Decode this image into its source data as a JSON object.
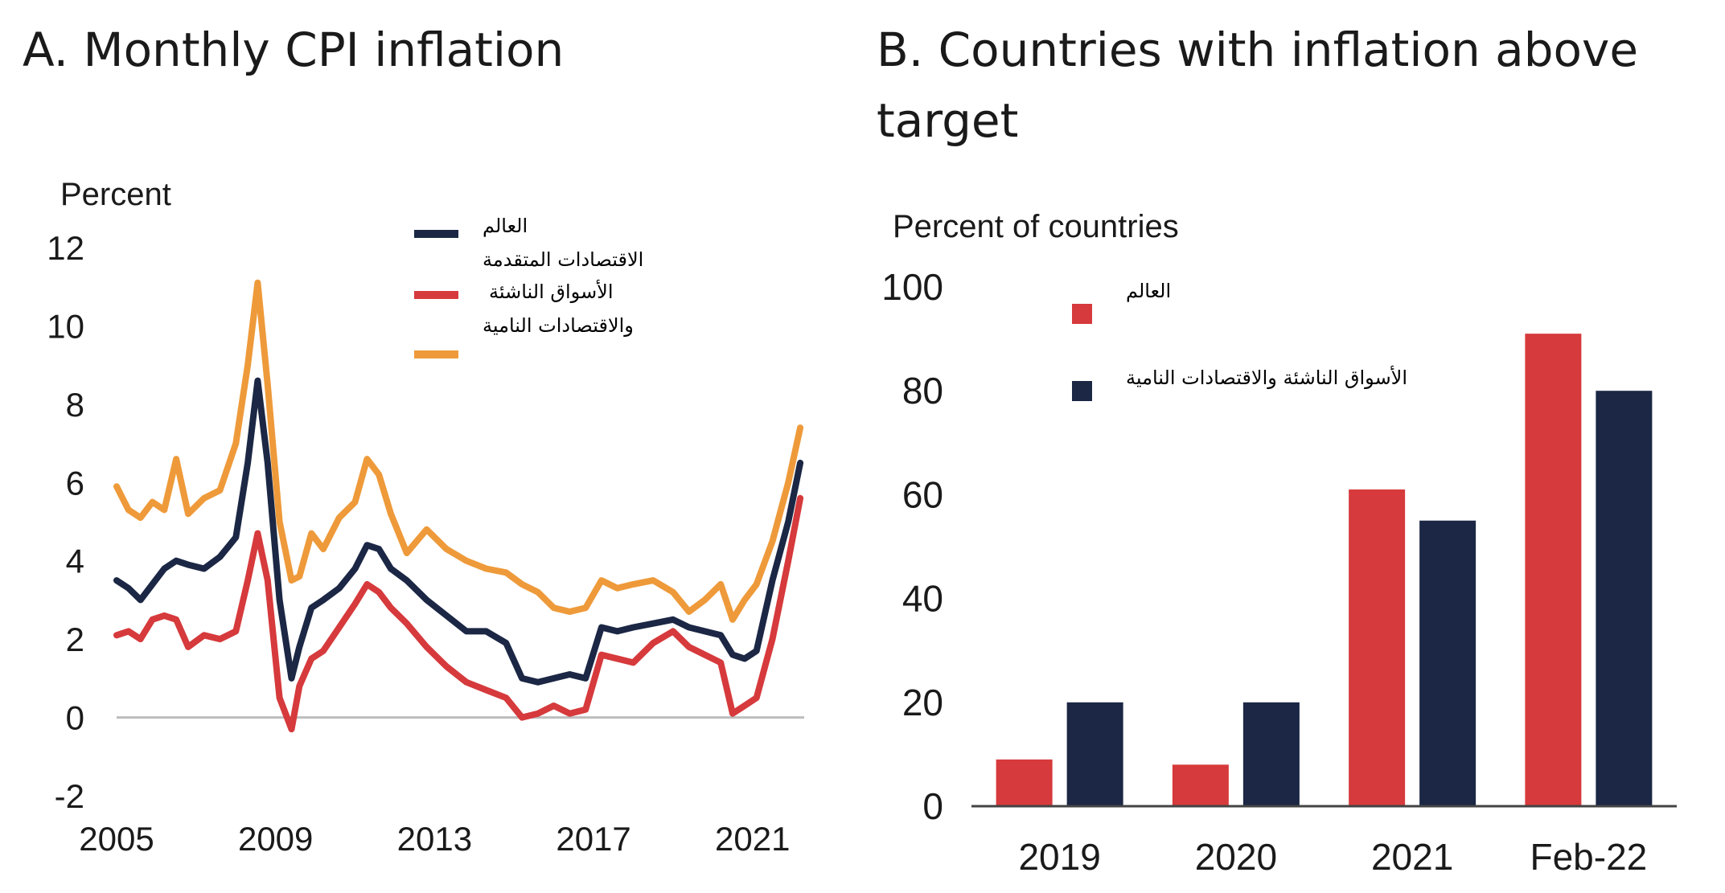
{
  "colors": {
    "world": "#1b2744",
    "advanced": "#d63a3c",
    "emde": "#ee9a3a",
    "zero_line": "#bdbdbd",
    "axis": "#444444",
    "text": "#1a1a1a"
  },
  "chart_data": [
    {
      "type": "line",
      "title": "A. Monthly CPI inflation",
      "ylabel": "Percent",
      "xlabel": "",
      "ylim": [
        -2,
        12
      ],
      "xlim": [
        2005.0,
        2022.3
      ],
      "yticks": [
        -2,
        0,
        2,
        4,
        6,
        8,
        10,
        12
      ],
      "xticks": [
        2005,
        2009,
        2013,
        2017,
        2021
      ],
      "legend_position": "top-right",
      "legend_labels": [
        "العالم",
        "الاقتصادات المتقدمة",
        "الأسواق الناشئة",
        "والاقتصادات النامية"
      ],
      "series": [
        {
          "color": "#1b2744",
          "x": [
            2005.0,
            2005.3,
            2005.6,
            2005.9,
            2006.2,
            2006.5,
            2006.8,
            2007.2,
            2007.6,
            2008.0,
            2008.3,
            2008.55,
            2008.8,
            2009.1,
            2009.4,
            2009.6,
            2009.9,
            2010.2,
            2010.6,
            2011.0,
            2011.3,
            2011.6,
            2011.9,
            2012.3,
            2012.8,
            2013.3,
            2013.8,
            2014.3,
            2014.8,
            2015.2,
            2015.6,
            2016.0,
            2016.4,
            2016.8,
            2017.2,
            2017.6,
            2018.0,
            2018.5,
            2019.0,
            2019.4,
            2019.8,
            2020.2,
            2020.5,
            2020.8,
            2021.1,
            2021.5,
            2021.9,
            2022.2
          ],
          "values": [
            3.5,
            3.3,
            3.0,
            3.4,
            3.8,
            4.0,
            3.9,
            3.8,
            4.1,
            4.6,
            6.5,
            8.6,
            6.5,
            3.0,
            1.0,
            1.8,
            2.8,
            3.0,
            3.3,
            3.8,
            4.4,
            4.3,
            3.8,
            3.5,
            3.0,
            2.6,
            2.2,
            2.2,
            1.9,
            1.0,
            0.9,
            1.0,
            1.1,
            1.0,
            2.3,
            2.2,
            2.3,
            2.4,
            2.5,
            2.3,
            2.2,
            2.1,
            1.6,
            1.5,
            1.7,
            3.5,
            5.0,
            6.5
          ]
        },
        {
          "color": "#d63a3c",
          "x": [
            2005.0,
            2005.3,
            2005.6,
            2005.9,
            2006.2,
            2006.5,
            2006.8,
            2007.2,
            2007.6,
            2008.0,
            2008.3,
            2008.55,
            2008.8,
            2009.1,
            2009.4,
            2009.6,
            2009.9,
            2010.2,
            2010.6,
            2011.0,
            2011.3,
            2011.6,
            2011.9,
            2012.3,
            2012.8,
            2013.3,
            2013.8,
            2014.3,
            2014.8,
            2015.2,
            2015.6,
            2016.0,
            2016.4,
            2016.8,
            2017.2,
            2017.6,
            2018.0,
            2018.5,
            2019.0,
            2019.4,
            2019.8,
            2020.2,
            2020.5,
            2020.8,
            2021.1,
            2021.5,
            2021.9,
            2022.2
          ],
          "values": [
            2.1,
            2.2,
            2.0,
            2.5,
            2.6,
            2.5,
            1.8,
            2.1,
            2.0,
            2.2,
            3.5,
            4.7,
            3.5,
            0.5,
            -0.3,
            0.8,
            1.5,
            1.7,
            2.3,
            2.9,
            3.4,
            3.2,
            2.8,
            2.4,
            1.8,
            1.3,
            0.9,
            0.7,
            0.5,
            0.0,
            0.1,
            0.3,
            0.1,
            0.2,
            1.6,
            1.5,
            1.4,
            1.9,
            2.2,
            1.8,
            1.6,
            1.4,
            0.1,
            0.3,
            0.5,
            2.0,
            4.0,
            5.6
          ]
        },
        {
          "color": "#ee9a3a",
          "x": [
            2005.0,
            2005.3,
            2005.6,
            2005.9,
            2006.2,
            2006.5,
            2006.8,
            2007.2,
            2007.6,
            2008.0,
            2008.3,
            2008.55,
            2008.8,
            2009.1,
            2009.4,
            2009.6,
            2009.9,
            2010.2,
            2010.6,
            2011.0,
            2011.3,
            2011.6,
            2011.9,
            2012.3,
            2012.8,
            2013.3,
            2013.8,
            2014.3,
            2014.8,
            2015.2,
            2015.6,
            2016.0,
            2016.4,
            2016.8,
            2017.2,
            2017.6,
            2018.0,
            2018.5,
            2019.0,
            2019.4,
            2019.8,
            2020.2,
            2020.5,
            2020.8,
            2021.1,
            2021.5,
            2021.9,
            2022.2
          ],
          "values": [
            5.9,
            5.3,
            5.1,
            5.5,
            5.3,
            6.6,
            5.2,
            5.6,
            5.8,
            7.0,
            9.0,
            11.1,
            8.5,
            5.0,
            3.5,
            3.6,
            4.7,
            4.3,
            5.1,
            5.5,
            6.6,
            6.2,
            5.2,
            4.2,
            4.8,
            4.3,
            4.0,
            3.8,
            3.7,
            3.4,
            3.2,
            2.8,
            2.7,
            2.8,
            3.5,
            3.3,
            3.4,
            3.5,
            3.2,
            2.7,
            3.0,
            3.4,
            2.5,
            3.0,
            3.4,
            4.5,
            6.0,
            7.4
          ]
        }
      ]
    },
    {
      "type": "bar",
      "title_line1": "B. Countries with inflation above",
      "title_line2": "target",
      "ylabel": "Percent of countries",
      "xlabel": "",
      "ylim": [
        0,
        100
      ],
      "yticks": [
        0,
        20,
        40,
        60,
        80,
        100
      ],
      "categories": [
        "2019",
        "2020",
        "2021",
        "Feb-22"
      ],
      "legend_position": "top-left",
      "legend_labels": [
        "العالم",
        "الأسواق الناشئة والاقتصادات النامية"
      ],
      "series": [
        {
          "color": "#d63a3c",
          "values": [
            9,
            8,
            61,
            91
          ]
        },
        {
          "color": "#1b2744",
          "values": [
            20,
            20,
            55,
            80
          ]
        }
      ]
    }
  ]
}
